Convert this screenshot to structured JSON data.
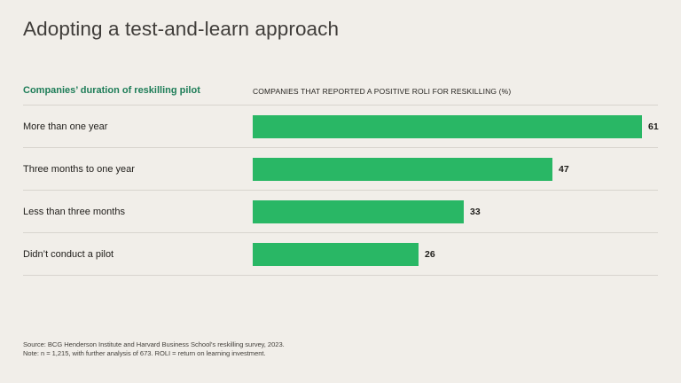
{
  "title": "Adopting a test-and-learn approach",
  "chart": {
    "left_header": "Companies’ duration of reskilling pilot",
    "right_header": "COMPANIES THAT REPORTED A POSITIVE ROLI FOR RESKILLING (%)"
  },
  "chart_data": {
    "type": "bar",
    "orientation": "horizontal",
    "title": "Adopting a test-and-learn approach",
    "categories": [
      "More than one year",
      "Three months to one year",
      "Less than three months",
      "Didn’t conduct a pilot"
    ],
    "values": [
      61,
      47,
      33,
      26
    ],
    "xlabel": "COMPANIES THAT REPORTED A POSITIVE ROLI FOR RESKILLING (%)",
    "ylabel": "Companies’ duration of reskilling pilot",
    "xlim": [
      0,
      100
    ],
    "value_labels": true,
    "grid": false,
    "legend": false,
    "bar_color": "#29b765"
  },
  "footer": {
    "source": "Source: BCG Henderson Institute and Harvard Business School’s reskilling survey, 2023.",
    "note": "Note: n = 1,215, with further analysis of 673. ROLI = return on learning investment."
  },
  "colors": {
    "background": "#f1eee9",
    "accent_green_bar": "#29b765",
    "accent_green_text": "#1e7d58",
    "divider": "#d8d4ce",
    "text_dark": "#262420"
  }
}
